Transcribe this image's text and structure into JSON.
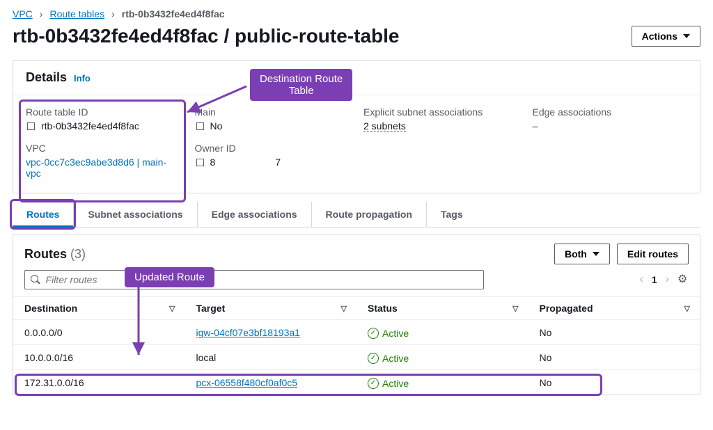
{
  "colors": {
    "link": "#0073bb",
    "text": "#16191f",
    "muted": "#545b64",
    "border": "#d5dbdb",
    "annotation": "#7b3fb3",
    "status_active": "#1d8102"
  },
  "breadcrumb": {
    "vpc": "VPC",
    "route_tables": "Route tables",
    "current": "rtb-0b3432fe4ed4f8fac"
  },
  "page_title": "rtb-0b3432fe4ed4f8fac / public-route-table",
  "actions_button": "Actions",
  "details": {
    "heading": "Details",
    "info": "Info",
    "fields": {
      "route_table_id": {
        "label": "Route table ID",
        "value": "rtb-0b3432fe4ed4f8fac"
      },
      "vpc": {
        "label": "VPC",
        "value": "vpc-0cc7c3ec9abe3d8d6 | main-vpc"
      },
      "main": {
        "label": "Main",
        "value": "No"
      },
      "owner_id": {
        "label": "Owner ID",
        "value_prefix": "8",
        "value_suffix": "7"
      },
      "explicit_subnet": {
        "label": "Explicit subnet associations",
        "value": "2 subnets"
      },
      "edge_assoc": {
        "label": "Edge associations",
        "value": "–"
      }
    }
  },
  "annotations": {
    "dest_route_table": "Destination Route\nTable",
    "updated_route": "Updated Route"
  },
  "tabs": {
    "routes": "Routes",
    "subnet": "Subnet associations",
    "edge": "Edge associations",
    "propagation": "Route propagation",
    "tags": "Tags"
  },
  "routes": {
    "title": "Routes",
    "count": "(3)",
    "filter_both": "Both",
    "edit_routes": "Edit routes",
    "search_placeholder": "Filter routes",
    "page": "1",
    "columns": {
      "destination": "Destination",
      "target": "Target",
      "status": "Status",
      "propagated": "Propagated"
    },
    "rows": [
      {
        "destination": "0.0.0.0/0",
        "target": "igw-04cf07e3bf18193a1",
        "target_link": true,
        "status": "Active",
        "propagated": "No"
      },
      {
        "destination": "10.0.0.0/16",
        "target": "local",
        "target_link": false,
        "status": "Active",
        "propagated": "No"
      },
      {
        "destination": "172.31.0.0/16",
        "target": "pcx-06558f480cf0af0c5",
        "target_link": true,
        "status": "Active",
        "propagated": "No"
      }
    ]
  }
}
